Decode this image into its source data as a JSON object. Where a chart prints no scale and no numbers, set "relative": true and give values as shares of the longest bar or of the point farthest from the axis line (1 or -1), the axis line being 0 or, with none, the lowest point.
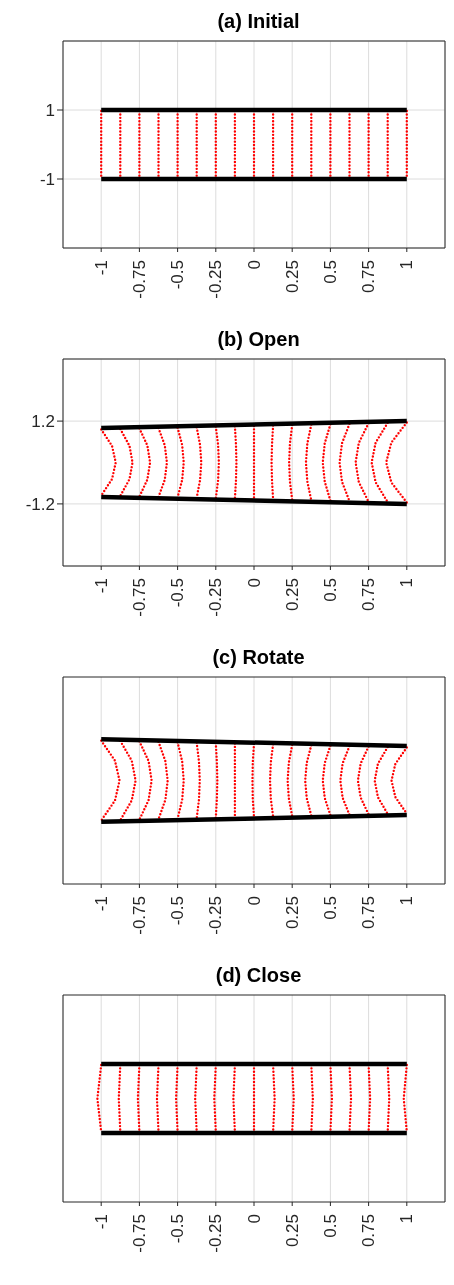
{
  "chart_data": [
    {
      "type": "line",
      "title": "(a) Initial",
      "xlim": [
        -1.25,
        1.25
      ],
      "xticks": [
        -1,
        -0.75,
        -0.5,
        -0.25,
        0,
        0.25,
        0.5,
        0.75,
        1
      ],
      "ylim": [
        -3,
        3
      ],
      "yticks": [
        -1,
        1
      ],
      "grid": true,
      "series": [
        {
          "color": "#ff0000",
          "line_style": "dotted",
          "x": [
            -1,
            -1
          ],
          "values": [
            0.97,
            -0.97
          ]
        },
        {
          "color": "#ff0000",
          "line_style": "dotted",
          "x": [
            -0.875,
            -0.875
          ],
          "values": [
            0.97,
            -0.97
          ]
        },
        {
          "color": "#ff0000",
          "line_style": "dotted",
          "x": [
            -0.75,
            -0.75
          ],
          "values": [
            0.97,
            -0.97
          ]
        },
        {
          "color": "#ff0000",
          "line_style": "dotted",
          "x": [
            -0.625,
            -0.625
          ],
          "values": [
            0.97,
            -0.97
          ]
        },
        {
          "color": "#ff0000",
          "line_style": "dotted",
          "x": [
            -0.5,
            -0.5
          ],
          "values": [
            0.97,
            -0.97
          ]
        },
        {
          "color": "#ff0000",
          "line_style": "dotted",
          "x": [
            -0.375,
            -0.375
          ],
          "values": [
            0.97,
            -0.97
          ]
        },
        {
          "color": "#ff0000",
          "line_style": "dotted",
          "x": [
            -0.25,
            -0.25
          ],
          "values": [
            0.97,
            -0.97
          ]
        },
        {
          "color": "#ff0000",
          "line_style": "dotted",
          "x": [
            -0.125,
            -0.125
          ],
          "values": [
            0.97,
            -0.97
          ]
        },
        {
          "color": "#ff0000",
          "line_style": "dotted",
          "x": [
            0,
            0
          ],
          "values": [
            0.97,
            -0.97
          ]
        },
        {
          "color": "#ff0000",
          "line_style": "dotted",
          "x": [
            0.125,
            0.125
          ],
          "values": [
            0.97,
            -0.97
          ]
        },
        {
          "color": "#ff0000",
          "line_style": "dotted",
          "x": [
            0.25,
            0.25
          ],
          "values": [
            0.97,
            -0.97
          ]
        },
        {
          "color": "#ff0000",
          "line_style": "dotted",
          "x": [
            0.375,
            0.375
          ],
          "values": [
            0.97,
            -0.97
          ]
        },
        {
          "color": "#ff0000",
          "line_style": "dotted",
          "x": [
            0.5,
            0.5
          ],
          "values": [
            0.97,
            -0.97
          ]
        },
        {
          "color": "#ff0000",
          "line_style": "dotted",
          "x": [
            0.625,
            0.625
          ],
          "values": [
            0.97,
            -0.97
          ]
        },
        {
          "color": "#ff0000",
          "line_style": "dotted",
          "x": [
            0.75,
            0.75
          ],
          "values": [
            0.97,
            -0.97
          ]
        },
        {
          "color": "#ff0000",
          "line_style": "dotted",
          "x": [
            0.875,
            0.875
          ],
          "values": [
            0.97,
            -0.97
          ]
        },
        {
          "color": "#ff0000",
          "line_style": "dotted",
          "x": [
            1,
            1
          ],
          "values": [
            0.97,
            -0.97
          ]
        },
        {
          "color": "#000000",
          "line_style": "solid",
          "x": [
            -1,
            1
          ],
          "values": [
            1,
            1
          ]
        },
        {
          "color": "#000000",
          "line_style": "solid",
          "x": [
            -1,
            1
          ],
          "values": [
            -1,
            -1
          ]
        }
      ]
    },
    {
      "type": "line",
      "title": "(b) Open",
      "xlim": [
        -1.25,
        1.25
      ],
      "xticks": [
        -1,
        -0.75,
        -0.5,
        -0.25,
        0,
        0.25,
        0.5,
        0.75,
        1
      ],
      "ylim": [
        -3,
        3
      ],
      "yticks": [
        -1.2,
        1.2
      ],
      "grid": true,
      "series": [
        {
          "color": "#ff0000",
          "line_style": "dotted",
          "x": [
            -1,
            -0.929,
            -0.905,
            -0.929,
            -1
          ],
          "values": [
            0.96,
            0.48,
            0,
            -0.48,
            -0.96
          ]
        },
        {
          "color": "#ff0000",
          "line_style": "dotted",
          "x": [
            -0.875,
            -0.815,
            -0.795,
            -0.815,
            -0.875
          ],
          "values": [
            0.97,
            0.485,
            0,
            -0.485,
            -0.97
          ]
        },
        {
          "color": "#ff0000",
          "line_style": "dotted",
          "x": [
            -0.75,
            -0.698,
            -0.68,
            -0.698,
            -0.75
          ],
          "values": [
            0.99,
            0.495,
            0,
            -0.495,
            -0.99
          ]
        },
        {
          "color": "#ff0000",
          "line_style": "dotted",
          "x": [
            -0.625,
            -0.584,
            -0.57,
            -0.584,
            -0.625
          ],
          "values": [
            1,
            0.5,
            0,
            -0.5,
            -1
          ]
        },
        {
          "color": "#ff0000",
          "line_style": "dotted",
          "x": [
            -0.5,
            -0.47,
            -0.46,
            -0.47,
            -0.5
          ],
          "values": [
            1.01,
            0.505,
            0,
            -0.505,
            -1.01
          ]
        },
        {
          "color": "#ff0000",
          "line_style": "dotted",
          "x": [
            -0.375,
            -0.353,
            -0.345,
            -0.353,
            -0.375
          ],
          "values": [
            1.02,
            0.51,
            0,
            -0.51,
            -1.02
          ]
        },
        {
          "color": "#ff0000",
          "line_style": "dotted",
          "x": [
            -0.25,
            -0.235,
            -0.23,
            -0.235,
            -0.25
          ],
          "values": [
            1.04,
            0.52,
            0,
            -0.52,
            -1.04
          ]
        },
        {
          "color": "#ff0000",
          "line_style": "dotted",
          "x": [
            -0.125,
            -0.118,
            -0.115,
            -0.118,
            -0.125
          ],
          "values": [
            1.05,
            0.525,
            0,
            -0.525,
            -1.05
          ]
        },
        {
          "color": "#ff0000",
          "line_style": "dotted",
          "x": [
            0,
            0,
            0,
            0,
            0
          ],
          "values": [
            1.06,
            0.53,
            0,
            -0.53,
            -1.06
          ]
        },
        {
          "color": "#ff0000",
          "line_style": "dotted",
          "x": [
            0.125,
            0.118,
            0.115,
            0.118,
            0.125
          ],
          "values": [
            1.07,
            0.535,
            0,
            -0.535,
            -1.07
          ]
        },
        {
          "color": "#ff0000",
          "line_style": "dotted",
          "x": [
            0.25,
            0.235,
            0.23,
            0.235,
            0.25
          ],
          "values": [
            1.09,
            0.545,
            0,
            -0.545,
            -1.09
          ]
        },
        {
          "color": "#ff0000",
          "line_style": "dotted",
          "x": [
            0.375,
            0.349,
            0.34,
            0.349,
            0.375
          ],
          "values": [
            1.1,
            0.55,
            0,
            -0.55,
            -1.1
          ]
        },
        {
          "color": "#ff0000",
          "line_style": "dotted",
          "x": [
            0.5,
            0.463,
            0.45,
            0.463,
            0.5
          ],
          "values": [
            1.11,
            0.555,
            0,
            -0.555,
            -1.11
          ]
        },
        {
          "color": "#ff0000",
          "line_style": "dotted",
          "x": [
            0.625,
            0.576,
            0.56,
            0.576,
            0.625
          ],
          "values": [
            1.12,
            0.56,
            0,
            -0.56,
            -1.12
          ]
        },
        {
          "color": "#ff0000",
          "line_style": "dotted",
          "x": [
            0.75,
            0.686,
            0.665,
            0.686,
            0.75
          ],
          "values": [
            1.14,
            0.57,
            0,
            -0.57,
            -1.14
          ]
        },
        {
          "color": "#ff0000",
          "line_style": "dotted",
          "x": [
            0.875,
            0.796,
            0.77,
            0.796,
            0.875
          ],
          "values": [
            1.15,
            0.575,
            0,
            -0.575,
            -1.15
          ]
        },
        {
          "color": "#ff0000",
          "line_style": "dotted",
          "x": [
            1,
            0.899,
            0.865,
            0.899,
            1
          ],
          "values": [
            1.16,
            0.58,
            0,
            -0.58,
            -1.16
          ]
        },
        {
          "color": "#000000",
          "line_style": "solid",
          "x": [
            -1,
            1
          ],
          "values": [
            1,
            1.2
          ]
        },
        {
          "color": "#000000",
          "line_style": "solid",
          "x": [
            -1,
            1
          ],
          "values": [
            -1,
            -1.2
          ]
        }
      ]
    },
    {
      "type": "line",
      "title": "(c) Rotate",
      "relative": true,
      "xlim": [
        -1.25,
        1.25
      ],
      "xticks": [
        -1,
        -0.75,
        -0.5,
        -0.25,
        0,
        0.25,
        0.5,
        0.75,
        1
      ],
      "grid": true,
      "series": [
        {
          "color": "#ff0000",
          "line_style": "dotted",
          "x": [
            -1,
            -0.91,
            -0.88,
            -0.91,
            -1
          ],
          "values": [
            0.99,
            0.852,
            0.714,
            0.576,
            0.438
          ]
        },
        {
          "color": "#ff0000",
          "line_style": "dotted",
          "x": [
            -0.875,
            -0.8,
            -0.775,
            -0.8,
            -0.875
          ],
          "values": [
            0.988,
            0.851,
            0.714,
            0.577,
            0.44
          ]
        },
        {
          "color": "#ff0000",
          "line_style": "dotted",
          "x": [
            -0.75,
            -0.69,
            -0.67,
            -0.69,
            -0.75
          ],
          "values": [
            0.985,
            0.849,
            0.714,
            0.579,
            0.444
          ]
        },
        {
          "color": "#ff0000",
          "line_style": "dotted",
          "x": [
            -0.625,
            -0.58,
            -0.565,
            -0.58,
            -0.625
          ],
          "values": [
            0.982,
            0.848,
            0.714,
            0.581,
            0.447
          ]
        },
        {
          "color": "#ff0000",
          "line_style": "dotted",
          "x": [
            -0.5,
            -0.47,
            -0.46,
            -0.47,
            -0.5
          ],
          "values": [
            0.979,
            0.846,
            0.714,
            0.582,
            0.45
          ]
        },
        {
          "color": "#ff0000",
          "line_style": "dotted",
          "x": [
            -0.375,
            -0.36,
            -0.355,
            -0.36,
            -0.375
          ],
          "values": [
            0.976,
            0.845,
            0.714,
            0.584,
            0.453
          ]
        },
        {
          "color": "#ff0000",
          "line_style": "dotted",
          "x": [
            -0.25,
            -0.243,
            -0.24,
            -0.243,
            -0.25
          ],
          "values": [
            0.973,
            0.843,
            0.714,
            0.585,
            0.456
          ]
        },
        {
          "color": "#ff0000",
          "line_style": "dotted",
          "x": [
            -0.125,
            -0.125,
            -0.125,
            -0.125,
            -0.125
          ],
          "values": [
            0.97,
            0.842,
            0.714,
            0.587,
            0.459
          ]
        },
        {
          "color": "#ff0000",
          "line_style": "dotted",
          "x": [
            0,
            -0.008,
            -0.01,
            -0.008,
            0
          ],
          "values": [
            0.967,
            0.84,
            0.714,
            0.588,
            0.462
          ]
        },
        {
          "color": "#ff0000",
          "line_style": "dotted",
          "x": [
            0.125,
            0.11,
            0.105,
            0.11,
            0.125
          ],
          "values": [
            0.964,
            0.839,
            0.714,
            0.59,
            0.465
          ]
        },
        {
          "color": "#ff0000",
          "line_style": "dotted",
          "x": [
            0.25,
            0.228,
            0.22,
            0.228,
            0.25
          ],
          "values": [
            0.961,
            0.838,
            0.714,
            0.591,
            0.468
          ]
        },
        {
          "color": "#ff0000",
          "line_style": "dotted",
          "x": [
            0.375,
            0.345,
            0.335,
            0.345,
            0.375
          ],
          "values": [
            0.958,
            0.836,
            0.714,
            0.593,
            0.471
          ]
        },
        {
          "color": "#ff0000",
          "line_style": "dotted",
          "x": [
            0.5,
            0.463,
            0.45,
            0.463,
            0.5
          ],
          "values": [
            0.955,
            0.835,
            0.714,
            0.594,
            0.474
          ]
        },
        {
          "color": "#ff0000",
          "line_style": "dotted",
          "x": [
            0.625,
            0.58,
            0.565,
            0.58,
            0.625
          ],
          "values": [
            0.952,
            0.833,
            0.714,
            0.595,
            0.477
          ]
        },
        {
          "color": "#ff0000",
          "line_style": "dotted",
          "x": [
            0.75,
            0.698,
            0.68,
            0.698,
            0.75
          ],
          "values": [
            0.949,
            0.832,
            0.714,
            0.597,
            0.48
          ]
        },
        {
          "color": "#ff0000",
          "line_style": "dotted",
          "x": [
            0.875,
            0.811,
            0.79,
            0.811,
            0.875
          ],
          "values": [
            0.946,
            0.83,
            0.714,
            0.599,
            0.483
          ]
        },
        {
          "color": "#ff0000",
          "line_style": "dotted",
          "x": [
            1,
            0.925,
            0.9,
            0.925,
            1
          ],
          "values": [
            0.943,
            0.829,
            0.714,
            0.6,
            0.486
          ]
        },
        {
          "color": "#000000",
          "line_style": "solid",
          "x": [
            -1,
            1
          ],
          "values": [
            1,
            0.952
          ]
        },
        {
          "color": "#000000",
          "line_style": "solid",
          "x": [
            -1,
            1
          ],
          "values": [
            0.429,
            0.476
          ]
        }
      ]
    },
    {
      "type": "line",
      "title": "(d) Close",
      "relative": true,
      "xlim": [
        -1.25,
        1.25
      ],
      "xticks": [
        -1,
        -0.75,
        -0.5,
        -0.25,
        0,
        0.25,
        0.5,
        0.75,
        1
      ],
      "grid": true,
      "series": [
        {
          "color": "#ff0000",
          "line_style": "dotted",
          "x": [
            -1,
            -1.025,
            -1
          ],
          "values": [
            0.993,
            0.75,
            0.508
          ]
        },
        {
          "color": "#ff0000",
          "line_style": "dotted",
          "x": [
            -0.875,
            -0.885,
            -0.875
          ],
          "values": [
            0.993,
            0.75,
            0.508
          ]
        },
        {
          "color": "#ff0000",
          "line_style": "dotted",
          "x": [
            -0.75,
            -0.76,
            -0.75
          ],
          "values": [
            0.993,
            0.75,
            0.508
          ]
        },
        {
          "color": "#ff0000",
          "line_style": "dotted",
          "x": [
            -0.625,
            -0.635,
            -0.625
          ],
          "values": [
            0.993,
            0.75,
            0.508
          ]
        },
        {
          "color": "#ff0000",
          "line_style": "dotted",
          "x": [
            -0.5,
            -0.51,
            -0.5
          ],
          "values": [
            0.993,
            0.75,
            0.508
          ]
        },
        {
          "color": "#ff0000",
          "line_style": "dotted",
          "x": [
            -0.375,
            -0.385,
            -0.375
          ],
          "values": [
            0.993,
            0.75,
            0.508
          ]
        },
        {
          "color": "#ff0000",
          "line_style": "dotted",
          "x": [
            -0.25,
            -0.26,
            -0.25
          ],
          "values": [
            0.993,
            0.75,
            0.508
          ]
        },
        {
          "color": "#ff0000",
          "line_style": "dotted",
          "x": [
            -0.125,
            -0.135,
            -0.125
          ],
          "values": [
            0.993,
            0.75,
            0.508
          ]
        },
        {
          "color": "#ff0000",
          "line_style": "dotted",
          "x": [
            0,
            0,
            0
          ],
          "values": [
            0.993,
            0.75,
            0.508
          ]
        },
        {
          "color": "#ff0000",
          "line_style": "dotted",
          "x": [
            0.125,
            0.135,
            0.125
          ],
          "values": [
            0.993,
            0.75,
            0.508
          ]
        },
        {
          "color": "#ff0000",
          "line_style": "dotted",
          "x": [
            0.25,
            0.26,
            0.25
          ],
          "values": [
            0.993,
            0.75,
            0.508
          ]
        },
        {
          "color": "#ff0000",
          "line_style": "dotted",
          "x": [
            0.375,
            0.385,
            0.375
          ],
          "values": [
            0.993,
            0.75,
            0.508
          ]
        },
        {
          "color": "#ff0000",
          "line_style": "dotted",
          "x": [
            0.5,
            0.51,
            0.5
          ],
          "values": [
            0.993,
            0.75,
            0.508
          ]
        },
        {
          "color": "#ff0000",
          "line_style": "dotted",
          "x": [
            0.625,
            0.635,
            0.625
          ],
          "values": [
            0.993,
            0.75,
            0.508
          ]
        },
        {
          "color": "#ff0000",
          "line_style": "dotted",
          "x": [
            0.75,
            0.76,
            0.75
          ],
          "values": [
            0.993,
            0.75,
            0.508
          ]
        },
        {
          "color": "#ff0000",
          "line_style": "dotted",
          "x": [
            0.875,
            0.885,
            0.875
          ],
          "values": [
            0.993,
            0.75,
            0.508
          ]
        },
        {
          "color": "#ff0000",
          "line_style": "dotted",
          "x": [
            1,
            0.98,
            1
          ],
          "values": [
            0.993,
            0.75,
            0.508
          ]
        },
        {
          "color": "#000000",
          "line_style": "solid",
          "x": [
            -1,
            1
          ],
          "values": [
            1,
            1
          ]
        },
        {
          "color": "#000000",
          "line_style": "solid",
          "x": [
            -1,
            1
          ],
          "values": [
            0.5,
            0.5
          ]
        }
      ]
    }
  ]
}
